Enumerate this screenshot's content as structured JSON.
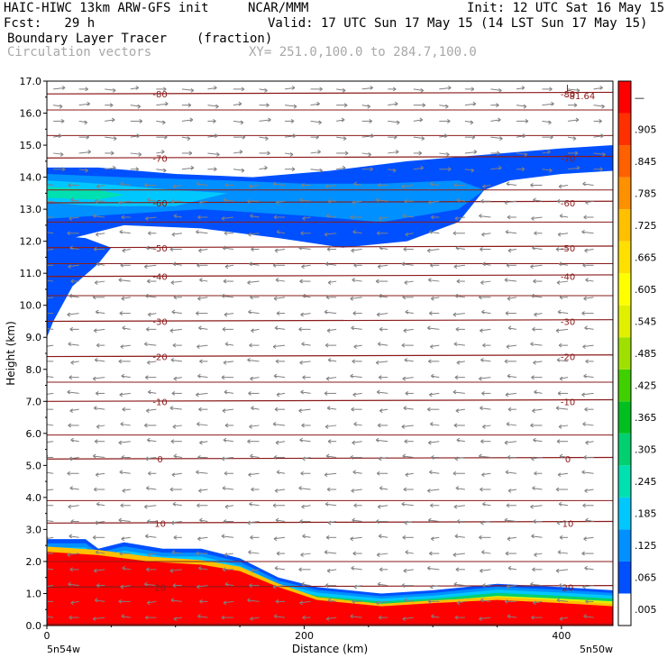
{
  "header": {
    "model": "HAIC-HIWC 13km ARW-GFS init",
    "org": "NCAR/MMM",
    "init": "Init: 12 UTC Sat 16 May 15",
    "fcst": "Fcst:   29 h",
    "valid": "Valid: 17 UTC Sun 17 May 15 (14 LST Sun 17 May 15)",
    "field": "Boundary Layer Tracer",
    "units": "(fraction)",
    "vectors": "Circulation vectors",
    "xy": "XY= 251.0,100.0 to 284.7,100.0"
  },
  "chart_data": {
    "type": "heatmap",
    "ylabel": "Height (km)",
    "xlabel": "Distance (km)",
    "x_range": [
      0,
      440
    ],
    "y_range": [
      0,
      17
    ],
    "y_ticks": [
      "0.0",
      "1.0",
      "2.0",
      "3.0",
      "4.0",
      "5.0",
      "6.0",
      "7.0",
      "8.0",
      "9.0",
      "10.0",
      "11.0",
      "12.0",
      "13.0",
      "14.0",
      "15.0",
      "16.0",
      "17.0"
    ],
    "x_ticks": [
      {
        "value": 0,
        "label": "0"
      },
      {
        "value": 200,
        "label": "200"
      },
      {
        "value": 400,
        "label": "400"
      }
    ],
    "x_end_labels": [
      "5n54w",
      "5n50w"
    ],
    "colorbar": {
      "labels": [
        ".005",
        ".065",
        ".125",
        ".185",
        ".245",
        ".305",
        ".365",
        ".425",
        ".485",
        ".545",
        ".605",
        ".665",
        ".725",
        ".785",
        ".845",
        ".905",
        "—"
      ],
      "colors": [
        "#ffffff",
        "#0050ff",
        "#0090ff",
        "#00c8ff",
        "#00e0b0",
        "#00d070",
        "#00c020",
        "#40d000",
        "#a0e000",
        "#e0f000",
        "#ffff00",
        "#ffe000",
        "#ffc000",
        "#ff9000",
        "#ff6000",
        "#ff3000",
        "#ff0000"
      ]
    },
    "tracer_regions": [
      {
        "name": "boundary-layer-core",
        "level": 0.95,
        "top_km": [
          [
            0,
            2.3
          ],
          [
            40,
            2.2
          ],
          [
            80,
            2.0
          ],
          [
            120,
            1.9
          ],
          [
            150,
            1.7
          ],
          [
            180,
            1.2
          ],
          [
            210,
            0.8
          ],
          [
            260,
            0.6
          ],
          [
            300,
            0.7
          ],
          [
            350,
            0.8
          ],
          [
            400,
            0.7
          ],
          [
            440,
            0.6
          ]
        ]
      },
      {
        "name": "boundary-layer-edge",
        "level": 0.3,
        "top_km": [
          [
            0,
            2.7
          ],
          [
            30,
            2.7
          ],
          [
            40,
            2.4
          ],
          [
            60,
            2.6
          ],
          [
            90,
            2.4
          ],
          [
            120,
            2.4
          ],
          [
            150,
            2.1
          ],
          [
            180,
            1.5
          ],
          [
            210,
            1.2
          ],
          [
            260,
            1.0
          ],
          [
            300,
            1.1
          ],
          [
            350,
            1.3
          ],
          [
            400,
            1.2
          ],
          [
            440,
            1.1
          ]
        ]
      },
      {
        "name": "upper-tracer-plume",
        "level": 0.05,
        "note": ""
      }
    ],
    "temperature_contours": [
      {
        "label": "-80",
        "height_km": 16.6
      },
      {
        "label": "-70",
        "height_km": 14.6
      },
      {
        "label": "-60",
        "height_km": 13.2
      },
      {
        "label": "-50",
        "height_km": 11.8
      },
      {
        "label": "-40",
        "height_km": 10.9
      },
      {
        "label": "-30",
        "height_km": 9.5
      },
      {
        "label": "-20",
        "height_km": 8.4
      },
      {
        "label": "-10",
        "height_km": 7.0
      },
      {
        "label": "0",
        "height_km": 5.2
      },
      {
        "label": "10",
        "height_km": 3.2
      },
      {
        "label": "20",
        "height_km": 1.2
      }
    ],
    "minimum_label": {
      "letter": "L",
      "value": "-81.64"
    },
    "vector_color": "#808080",
    "contour_color": "#8b1a1a"
  }
}
